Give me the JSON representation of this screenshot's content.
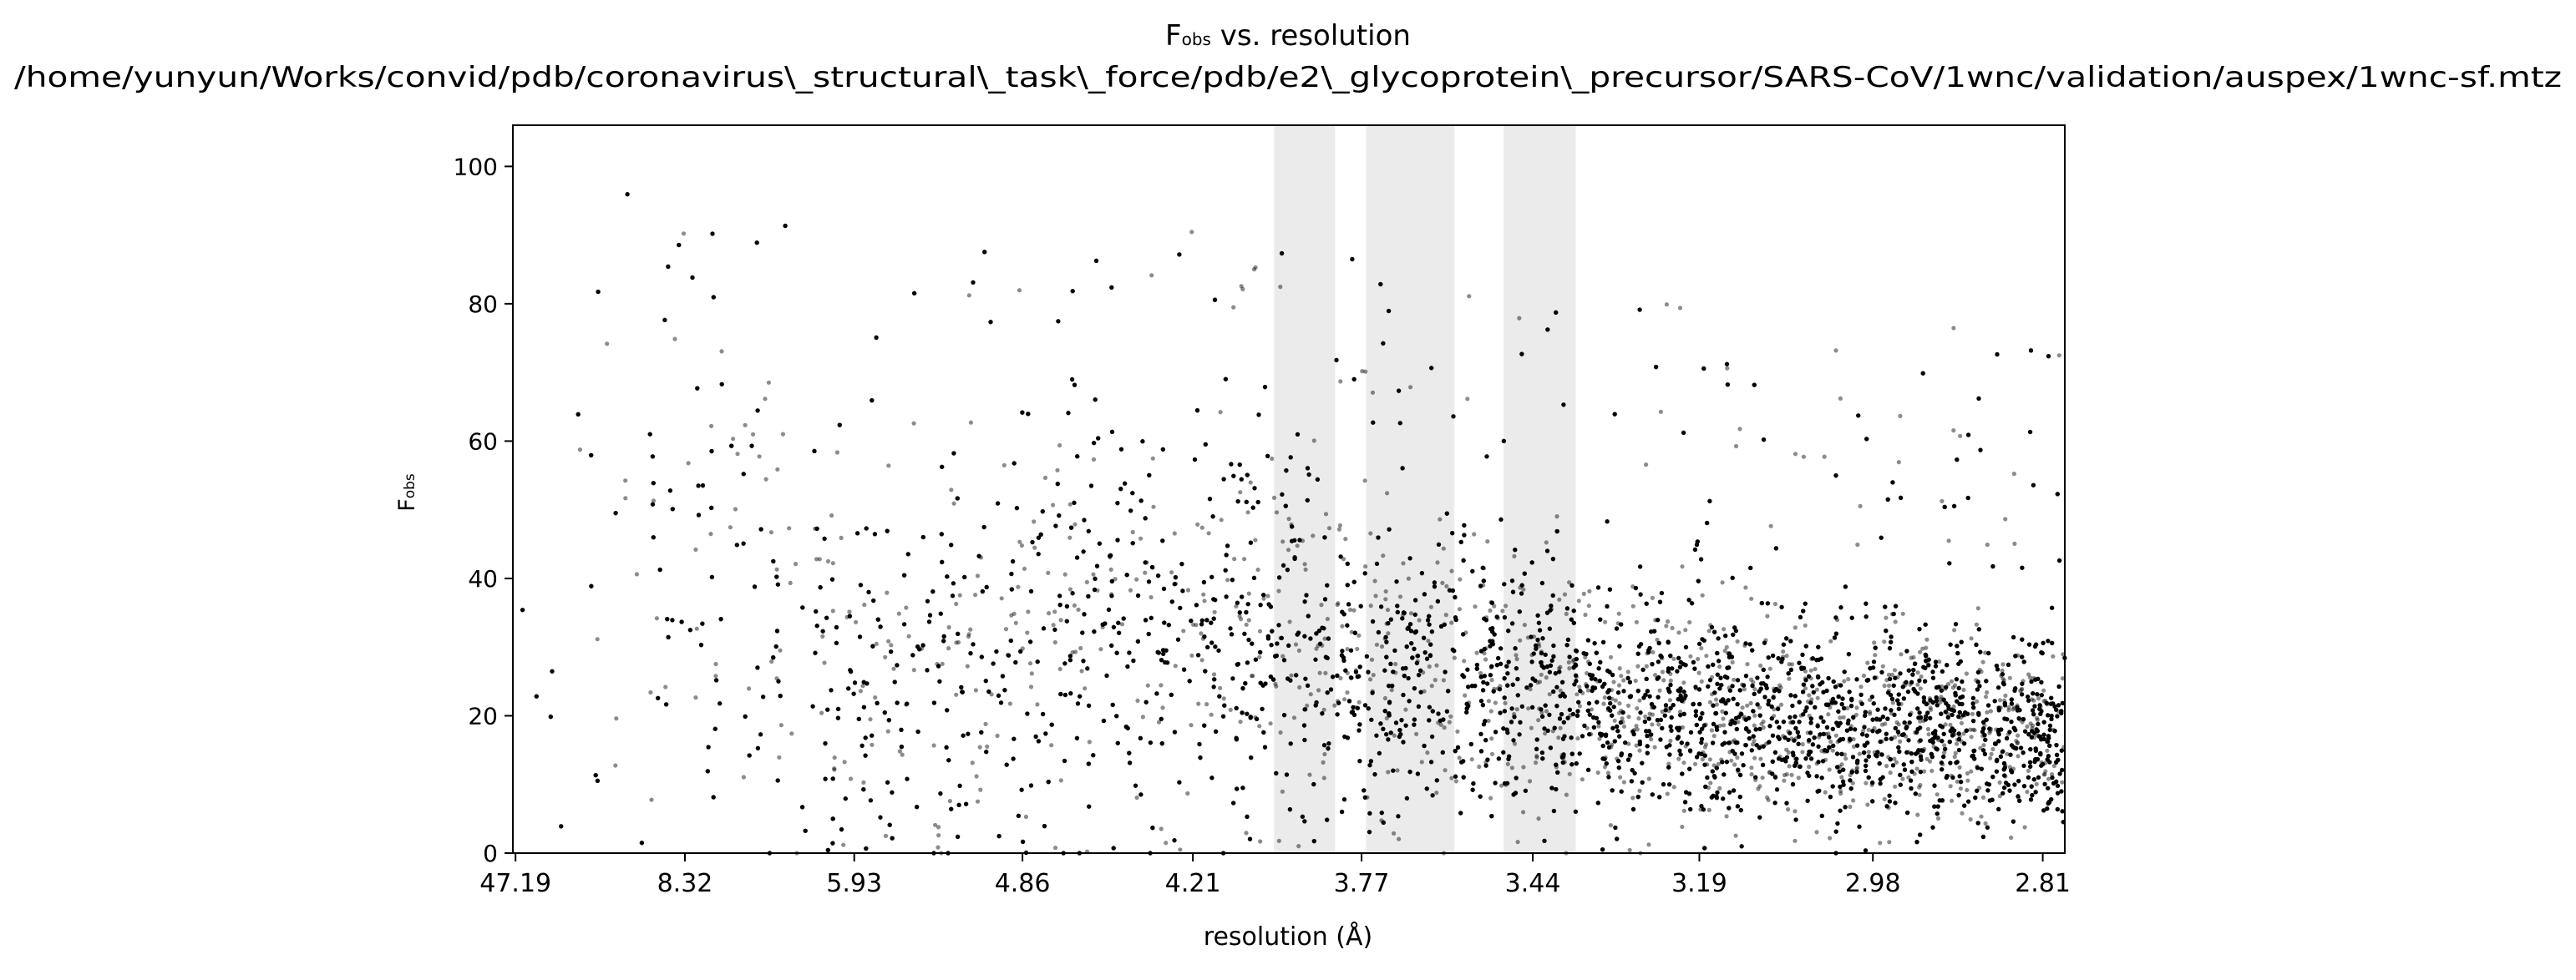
{
  "chart_data": {
    "type": "scatter",
    "title": {
      "main": "F",
      "subscript": "obs",
      "suffix": " vs. resolution"
    },
    "subtitle": "/home/yunyun/Works/convid/pdb/coronavirus\\_structural\\_task\\_force/pdb/e2\\_glycoprotein\\_precursor/SARS-CoV/1wnc/validation/auspex/1wnc-sf.mtz",
    "xlabel": "resolution (Å)",
    "ylabel": {
      "main": "F",
      "subscript": "obs"
    },
    "x_axis": {
      "quantity": "1/d^2",
      "scale": "reciprocal-square",
      "range_res": [
        66.0,
        2.79
      ],
      "tick_labels": [
        "47.19",
        "8.32",
        "5.93",
        "4.86",
        "4.21",
        "3.77",
        "3.44",
        "3.19",
        "2.98",
        "2.81"
      ]
    },
    "ylim": [
      0,
      106
    ],
    "y_ticks": [
      0,
      20,
      40,
      60,
      80,
      100
    ],
    "grid": false,
    "legend": "none",
    "highlighted_resolution_bands": [
      {
        "from_res": 3.98,
        "to_res": 3.83
      },
      {
        "from_res": 3.76,
        "to_res": 3.58
      },
      {
        "from_res": 3.49,
        "to_res": 3.37
      }
    ],
    "point_color": "#000000",
    "point_opacity": 0.45,
    "band_color": "#ebebeb",
    "point_count_estimate": 14000,
    "density_profile": {
      "resolution_anchors": [
        40.0,
        12.0,
        8.32,
        6.8,
        5.93,
        5.3,
        4.86,
        4.5,
        4.21,
        3.95,
        3.77,
        3.6,
        3.44,
        3.3,
        3.19,
        3.08,
        2.98,
        2.9,
        2.81
      ],
      "median_F": [
        34,
        40,
        42,
        38,
        24,
        25,
        30,
        32,
        33,
        31,
        27,
        26,
        23,
        21,
        20,
        19,
        18,
        18,
        17
      ],
      "spread_F": [
        22,
        22,
        24,
        20,
        12,
        14,
        18,
        16,
        15,
        13,
        11,
        10,
        9,
        8,
        8,
        7,
        7,
        6,
        6
      ]
    }
  }
}
